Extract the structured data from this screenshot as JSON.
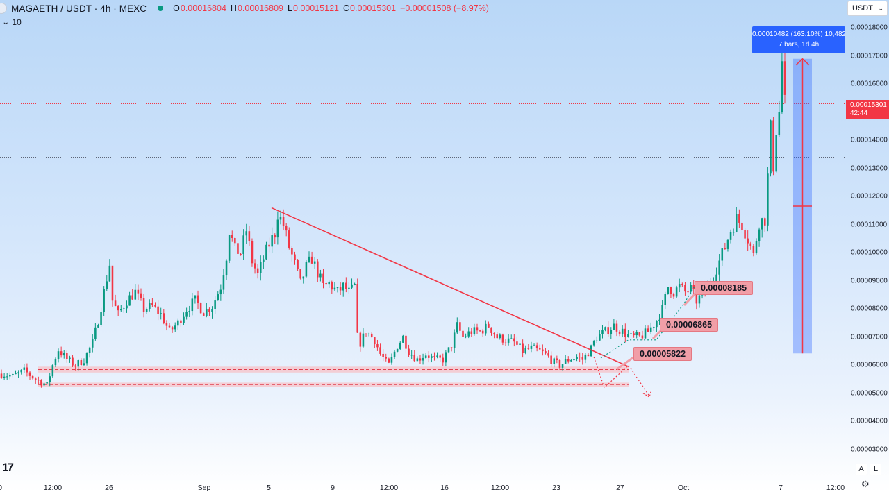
{
  "header": {
    "symbol": "MAGAETH / USDT · 4h · MEXC",
    "open_label": "O",
    "open": "0.00016804",
    "high_label": "H",
    "high": "0.00016809",
    "low_label": "L",
    "low": "0.00015121",
    "close_label": "C",
    "close": "0.00015301",
    "change": "−0.00001508 (−8.97%)",
    "volume_value": "10"
  },
  "currency": {
    "selected": "USDT"
  },
  "price_axis": {
    "ticks": [
      "0.00018000",
      "0.00017000",
      "0.00016000",
      "0.00015000",
      "0.00014000",
      "0.00013000",
      "0.00012000",
      "0.00011000",
      "0.00010000",
      "0.00009000",
      "0.00008000",
      "0.00007000",
      "0.00006000",
      "0.00005000",
      "0.00004000",
      "0.00003000"
    ],
    "last_price": "0.00015301",
    "countdown": "42:44"
  },
  "time_axis": {
    "ticks": [
      "0",
      "12:00",
      "26",
      "Sep",
      "5",
      "9",
      "12:00",
      "16",
      "12:00",
      "23",
      "27",
      "Oct",
      "7",
      "12:00"
    ]
  },
  "measure_tool": {
    "line1": "0.00010482 (163.10%) 10,482",
    "line2": "7 bars, 1d 4h"
  },
  "callouts": {
    "c1": "0.00005822",
    "c2": "0.00006865",
    "c3": "0.00008185"
  },
  "axis_buttons": {
    "auto": "A",
    "log": "L"
  },
  "colors": {
    "up": "#089981",
    "down": "#f23645",
    "accent": "#2962ff",
    "line": "#f23645"
  },
  "chart_data": {
    "type": "candlestick",
    "title": "MAGAETH / USDT · 4h · MEXC",
    "xlabel": "",
    "ylabel": "",
    "ylim": [
      2.6e-05,
      0.000184
    ],
    "x_ticks": [
      "0",
      "12:00",
      "26",
      "Sep",
      "5",
      "9",
      "12:00",
      "16",
      "12:00",
      "23",
      "27",
      "Oct",
      "7",
      "12:00"
    ],
    "grid": false,
    "support_zones": [
      [
        5.74e-05,
        5.95e-05
      ],
      [
        5.24e-05,
        5.38e-05
      ]
    ],
    "trendline": {
      "from": 0.000116,
      "to": 5.95e-05
    },
    "last_price": 0.00015301,
    "horizontal_level": 0.000134,
    "measure": {
      "from": 6.42e-05,
      "to": 0.000169,
      "change": 0.00010482,
      "percent": 163.1,
      "bars": 7
    },
    "close_path": [
      [
        0,
        5.7e-05
      ],
      [
        4,
        5.6e-05
      ],
      [
        8,
        5.8e-05
      ],
      [
        12,
        5.5e-05
      ],
      [
        16,
        5.3e-05
      ],
      [
        18,
        6e-05
      ],
      [
        20,
        6.55e-05
      ],
      [
        23,
        6.2e-05
      ],
      [
        26,
        6e-05
      ],
      [
        29,
        6.2e-05
      ],
      [
        32,
        6.8e-05
      ],
      [
        34,
        7.6e-05
      ],
      [
        36,
        8.6e-05
      ],
      [
        38,
        9.6e-05
      ],
      [
        39,
        8.3e-05
      ],
      [
        41,
        7.8e-05
      ],
      [
        44,
        8.3e-05
      ],
      [
        47,
        8.6e-05
      ],
      [
        50,
        8e-05
      ],
      [
        53,
        8.1e-05
      ],
      [
        56,
        7.8e-05
      ],
      [
        59,
        7.2e-05
      ],
      [
        62,
        7.5e-05
      ],
      [
        65,
        8e-05
      ],
      [
        68,
        8.3e-05
      ],
      [
        71,
        7.9e-05
      ],
      [
        74,
        8.1e-05
      ],
      [
        77,
        8.8e-05
      ],
      [
        79,
        9.9e-05
      ],
      [
        80,
        0.000108
      ],
      [
        82,
        0.000101
      ],
      [
        84,
        0.0001
      ],
      [
        86,
        0.000108
      ],
      [
        88,
        9.7e-05
      ],
      [
        90,
        9.2e-05
      ],
      [
        92,
        9.8e-05
      ],
      [
        94,
        0.000103
      ],
      [
        96,
        0.000107
      ],
      [
        97,
        0.000114
      ],
      [
        99,
        0.00011
      ],
      [
        101,
        0.000102
      ],
      [
        103,
        9.6e-05
      ],
      [
        105,
        8.9e-05
      ],
      [
        107,
        9.5e-05
      ],
      [
        109,
        9.8e-05
      ],
      [
        111,
        9.3e-05
      ],
      [
        113,
        8.8e-05
      ],
      [
        115,
        8.9e-05
      ],
      [
        118,
        8.6e-05
      ],
      [
        120,
        8.8e-05
      ],
      [
        122,
        8.6e-05
      ],
      [
        124,
        8.8e-05
      ],
      [
        125,
        7e-05
      ],
      [
        126,
        6.8e-05
      ],
      [
        128,
        7.2e-05
      ],
      [
        131,
        6.9e-05
      ],
      [
        133,
        6.4e-05
      ],
      [
        135,
        6.1e-05
      ],
      [
        136,
        6e-05
      ],
      [
        139,
        6.7e-05
      ],
      [
        141,
        7e-05
      ],
      [
        143,
        6.5e-05
      ],
      [
        146,
        6.2e-05
      ],
      [
        149,
        6.4e-05
      ],
      [
        152,
        6.2e-05
      ],
      [
        155,
        6.2e-05
      ],
      [
        158,
        6.7e-05
      ],
      [
        160,
        7.4e-05
      ],
      [
        162,
        7e-05
      ],
      [
        165,
        7.2e-05
      ],
      [
        168,
        7.2e-05
      ],
      [
        171,
        7.4e-05
      ],
      [
        174,
        7e-05
      ],
      [
        177,
        6.9e-05
      ],
      [
        180,
        6.8e-05
      ],
      [
        183,
        6.5e-05
      ],
      [
        186,
        6.6e-05
      ],
      [
        189,
        6.5e-05
      ],
      [
        192,
        6.3e-05
      ],
      [
        194,
        6.1e-05
      ],
      [
        196,
        6e-05
      ],
      [
        199,
        6.2e-05
      ],
      [
        202,
        6.3e-05
      ],
      [
        204,
        6.2e-05
      ],
      [
        207,
        6.6e-05
      ],
      [
        209,
        7e-05
      ],
      [
        212,
        7.2e-05
      ],
      [
        215,
        7.4e-05
      ],
      [
        218,
        7.2e-05
      ],
      [
        221,
        7e-05
      ],
      [
        224,
        7e-05
      ],
      [
        227,
        7.2e-05
      ],
      [
        230,
        7.6e-05
      ],
      [
        232,
        8e-05
      ],
      [
        234,
        8.8e-05
      ],
      [
        236,
        8.6e-05
      ],
      [
        238,
        8.8e-05
      ],
      [
        240,
        8.6e-05
      ],
      [
        242,
        8.7e-05
      ],
      [
        244,
        8.3e-05
      ],
      [
        246,
        8.5e-05
      ],
      [
        248,
        8.8e-05
      ],
      [
        250,
        9.2e-05
      ],
      [
        252,
        9.7e-05
      ],
      [
        254,
        0.000102
      ],
      [
        256,
        0.000108
      ],
      [
        258,
        0.000112
      ],
      [
        260,
        0.00011
      ],
      [
        262,
        0.000105
      ],
      [
        264,
        9.9e-05
      ],
      [
        266,
        0.000111
      ],
      [
        268,
        0.000112
      ],
      [
        269,
        0.000127
      ],
      [
        270,
        0.000144
      ],
      [
        271,
        0.000131
      ],
      [
        272,
        0.000144
      ],
      [
        273,
        0.00015
      ],
      [
        274,
        0.000168
      ],
      [
        275,
        0.000153
      ]
    ],
    "candle_count": 276
  }
}
